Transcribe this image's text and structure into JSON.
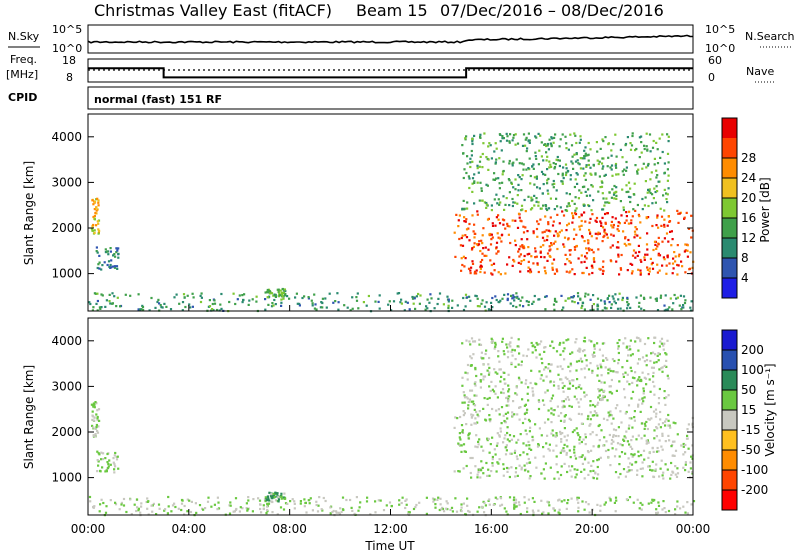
{
  "title": "Christmas Valley East (fitACF)",
  "beam_label": "Beam 15",
  "date_range": "07/Dec/2016 – 08/Dec/2016",
  "header_left_labels": {
    "nsky": "N.Sky",
    "freq": "Freq.",
    "freq_unit": "[MHz]",
    "cpid": "CPID"
  },
  "header_right_labels": {
    "nsearch": "N.Search",
    "nave": "Nave"
  },
  "ticks": {
    "noise_left": [
      "10^5",
      "10^0"
    ],
    "noise_right": [
      "10^5",
      "10^0"
    ],
    "freq_left": [
      "18",
      "8"
    ],
    "nave_right": [
      "60",
      "0"
    ],
    "range": [
      "1000",
      "2000",
      "3000",
      "4000"
    ],
    "time": [
      "00:00",
      "04:00",
      "08:00",
      "12:00",
      "16:00",
      "20:00",
      "00:00"
    ],
    "power": [
      "4",
      "8",
      "12",
      "16",
      "20",
      "24",
      "28"
    ],
    "velocity": [
      "-200",
      "-100",
      "-50",
      "-15",
      "15",
      "50",
      "100",
      "200"
    ]
  },
  "cpid_text": "normal (fast) 151 RF",
  "axis_labels": {
    "ylabel": "Slant Range [km]",
    "xlabel": "Time UT",
    "power": "Power [dB]",
    "velocity": "Velocity [m s⁻¹]"
  },
  "colors": {
    "power": [
      "#1f1fe6",
      "#2f55b0",
      "#2a8a70",
      "#3fa04a",
      "#7ec832",
      "#f0c020",
      "#ff8c00",
      "#ff4500",
      "#e80000"
    ],
    "velocity": [
      "#ff0000",
      "#ff4500",
      "#ff8c00",
      "#ffc020",
      "#c8c8c0",
      "#6ac840",
      "#2a8a58",
      "#2850b0",
      "#1a1ad0"
    ]
  },
  "chart_data": {
    "type": "heatmap",
    "x_unit": "hours UT",
    "xlim": [
      0,
      24
    ],
    "ylim": [
      180,
      4500
    ],
    "freq_steps": [
      {
        "t": 0,
        "freq_mhz": 14
      },
      {
        "t": 3,
        "freq_mhz": 10
      },
      {
        "t": 15,
        "freq_mhz": 14
      },
      {
        "t": 24,
        "freq_mhz": 14
      }
    ],
    "scatter_regions": [
      {
        "name": "early patch",
        "t0": 0.1,
        "t1": 0.4,
        "r0": 1900,
        "r1": 2700,
        "power_db": 20,
        "velocity": 15
      },
      {
        "name": "early low",
        "t0": 0.3,
        "t1": 1.2,
        "r0": 1100,
        "r1": 1600,
        "power_db": 8,
        "velocity": 15
      },
      {
        "name": "ground scatter",
        "t0": 0,
        "t1": 24,
        "r0": 200,
        "r1": 600,
        "power_db": 10,
        "velocity": 15
      },
      {
        "name": "morning streak",
        "t0": 7.0,
        "t1": 7.8,
        "r0": 500,
        "r1": 700,
        "power_db": 12,
        "velocity": 50
      },
      {
        "name": "evening band",
        "t0": 14.5,
        "t1": 24,
        "r0": 1000,
        "r1": 2400,
        "power_db": 28,
        "velocity": 15
      },
      {
        "name": "evening upper",
        "t0": 14.8,
        "t1": 23,
        "r0": 2400,
        "r1": 4100,
        "power_db": 12,
        "velocity": 15
      }
    ]
  }
}
